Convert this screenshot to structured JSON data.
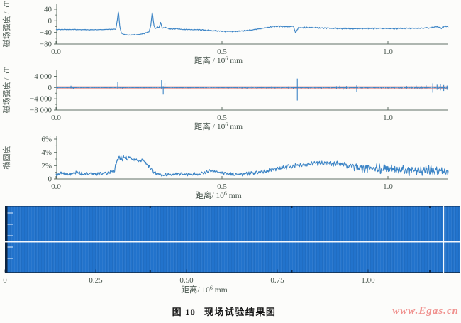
{
  "figure": {
    "caption": {
      "number": "图 10",
      "title": "现场试验结果图"
    },
    "watermark": "www.Egas.cn"
  },
  "colors": {
    "trace": "#3d85c6",
    "band": "#2273cc",
    "band_dark_edge": "#0d2440",
    "band_bottom_line": "#122b47",
    "threshold": "#e09090",
    "axis": "#5f6f65",
    "text": "#49564e",
    "white_line": "#ffffff"
  },
  "chart_data": [
    {
      "id": "magnetic-field-profile",
      "type": "line",
      "ylabel": "磁场强度 / nT",
      "xlabel": {
        "pre": "距离 / 10",
        "exp": "6",
        "suf": " mm"
      },
      "xlim": [
        0,
        1.182
      ],
      "ylim": [
        -80,
        57
      ],
      "yticks": [
        {
          "v": 40,
          "l": "40"
        },
        {
          "v": 0,
          "l": "0"
        },
        {
          "v": -40,
          "l": "−40"
        },
        {
          "v": -80,
          "l": "−80"
        }
      ],
      "yminor": [
        20,
        -20,
        -60
      ],
      "xticks": [
        {
          "v": 0,
          "l": "0.0"
        },
        {
          "v": 0.5,
          "l": "0.5"
        },
        {
          "v": 1.0,
          "l": "1.0"
        }
      ],
      "keypoints": [
        [
          0,
          -30
        ],
        [
          0.05,
          -30
        ],
        [
          0.1,
          -31
        ],
        [
          0.15,
          -30
        ],
        [
          0.18,
          -29
        ],
        [
          0.185,
          5
        ],
        [
          0.188,
          35
        ],
        [
          0.192,
          -20
        ],
        [
          0.197,
          -42
        ],
        [
          0.205,
          -47
        ],
        [
          0.22,
          -49
        ],
        [
          0.245,
          -48
        ],
        [
          0.265,
          -44
        ],
        [
          0.28,
          -38
        ],
        [
          0.285,
          -20
        ],
        [
          0.29,
          30
        ],
        [
          0.295,
          -15
        ],
        [
          0.3,
          -28
        ],
        [
          0.305,
          -20
        ],
        [
          0.31,
          -26
        ],
        [
          0.315,
          -6
        ],
        [
          0.32,
          -25
        ],
        [
          0.33,
          -23
        ],
        [
          0.34,
          -28
        ],
        [
          0.36,
          -27
        ],
        [
          0.38,
          -29
        ],
        [
          0.4,
          -30
        ],
        [
          0.43,
          -31
        ],
        [
          0.46,
          -33
        ],
        [
          0.49,
          -35
        ],
        [
          0.52,
          -37
        ],
        [
          0.55,
          -36
        ],
        [
          0.58,
          -33
        ],
        [
          0.6,
          -30
        ],
        [
          0.63,
          -24
        ],
        [
          0.65,
          -20
        ],
        [
          0.67,
          -19
        ],
        [
          0.7,
          -20
        ],
        [
          0.715,
          -19
        ],
        [
          0.722,
          -42
        ],
        [
          0.73,
          -24
        ],
        [
          0.76,
          -23
        ],
        [
          0.8,
          -25
        ],
        [
          0.85,
          -26
        ],
        [
          0.9,
          -27
        ],
        [
          0.95,
          -26
        ],
        [
          1.0,
          -27
        ],
        [
          1.05,
          -26
        ],
        [
          1.1,
          -25
        ],
        [
          1.13,
          -24
        ],
        [
          1.15,
          -20
        ],
        [
          1.16,
          -26
        ],
        [
          1.17,
          -18
        ],
        [
          1.18,
          -22
        ]
      ],
      "noise_env": [
        [
          0,
          1.2
        ],
        [
          0.18,
          1.2
        ],
        [
          0.34,
          2.0
        ],
        [
          0.6,
          2.2
        ],
        [
          1.18,
          2.5
        ]
      ]
    },
    {
      "id": "magnetic-field-gradient",
      "type": "line",
      "ylabel": "磁场强度 / nT",
      "xlabel": {
        "pre": "距离 / 10",
        "exp": "6",
        "suf": " mm"
      },
      "xlim": [
        0,
        1.182
      ],
      "ylim": [
        -8000,
        6150
      ],
      "yticks": [
        {
          "v": 4000,
          "l": "4 000"
        },
        {
          "v": 0,
          "l": "0"
        },
        {
          "v": -4000,
          "l": "−4 000"
        },
        {
          "v": -8000,
          "l": "−8 000"
        }
      ],
      "yminor": [
        2000,
        -2000,
        -6000
      ],
      "xticks": [
        {
          "v": 0,
          "l": "0.0"
        },
        {
          "v": 0.5,
          "l": "0.5"
        },
        {
          "v": 1.0,
          "l": "1.0"
        }
      ],
      "threshold_lines": {
        "values": [
          330,
          -330
        ]
      },
      "keypoints": [
        [
          0,
          0
        ],
        [
          1.182,
          0
        ]
      ],
      "noise_env": [
        [
          0,
          50
        ],
        [
          0.3,
          60
        ],
        [
          0.5,
          80
        ],
        [
          0.7,
          90
        ],
        [
          0.85,
          120
        ],
        [
          0.95,
          140
        ],
        [
          1.05,
          200
        ],
        [
          1.18,
          260
        ]
      ],
      "impulses": [
        {
          "x": 0.004,
          "u": 260,
          "d": -260
        },
        {
          "x": 0.045,
          "u": 650,
          "d": -250
        },
        {
          "x": 0.052,
          "u": 180,
          "d": -420
        },
        {
          "x": 0.062,
          "u": 300,
          "d": -180
        },
        {
          "x": 0.13,
          "u": 200,
          "d": -120
        },
        {
          "x": 0.186,
          "u": 1900,
          "d": -350
        },
        {
          "x": 0.2,
          "u": 150,
          "d": -300
        },
        {
          "x": 0.318,
          "u": 2600,
          "d": -400
        },
        {
          "x": 0.323,
          "u": 500,
          "d": -2500
        },
        {
          "x": 0.328,
          "u": 1600,
          "d": -300
        },
        {
          "x": 0.37,
          "u": 220,
          "d": -180
        },
        {
          "x": 0.4,
          "u": 180,
          "d": -220
        },
        {
          "x": 0.425,
          "u": 250,
          "d": -150
        },
        {
          "x": 0.445,
          "u": 200,
          "d": -250
        },
        {
          "x": 0.46,
          "u": 160,
          "d": -200
        },
        {
          "x": 0.49,
          "u": 240,
          "d": -180
        },
        {
          "x": 0.52,
          "u": 180,
          "d": -240
        },
        {
          "x": 0.545,
          "u": 300,
          "d": -200
        },
        {
          "x": 0.56,
          "u": 350,
          "d": -300
        },
        {
          "x": 0.575,
          "u": 280,
          "d": -380
        },
        {
          "x": 0.59,
          "u": 420,
          "d": -260
        },
        {
          "x": 0.605,
          "u": 250,
          "d": -350
        },
        {
          "x": 0.62,
          "u": 380,
          "d": -280
        },
        {
          "x": 0.635,
          "u": 300,
          "d": -420
        },
        {
          "x": 0.65,
          "u": 500,
          "d": -450
        },
        {
          "x": 0.66,
          "u": 350,
          "d": -300
        },
        {
          "x": 0.68,
          "u": 280,
          "d": -600
        },
        {
          "x": 0.7,
          "u": 400,
          "d": -300
        },
        {
          "x": 0.715,
          "u": 350,
          "d": -400
        },
        {
          "x": 0.727,
          "u": 3200,
          "d": -4600
        },
        {
          "x": 0.74,
          "u": 300,
          "d": -250
        },
        {
          "x": 0.76,
          "u": 250,
          "d": -300
        },
        {
          "x": 0.78,
          "u": 350,
          "d": -280
        },
        {
          "x": 0.8,
          "u": 280,
          "d": -350
        },
        {
          "x": 0.82,
          "u": 300,
          "d": -250
        },
        {
          "x": 0.845,
          "u": 500,
          "d": -400
        },
        {
          "x": 0.855,
          "u": 650,
          "d": -350
        },
        {
          "x": 0.865,
          "u": 400,
          "d": -800
        },
        {
          "x": 0.875,
          "u": 550,
          "d": -450
        },
        {
          "x": 0.885,
          "u": 350,
          "d": -500
        },
        {
          "x": 0.906,
          "u": 800,
          "d": -1600
        },
        {
          "x": 0.92,
          "u": 300,
          "d": -250
        },
        {
          "x": 0.94,
          "u": 250,
          "d": -300
        },
        {
          "x": 0.96,
          "u": 300,
          "d": -200
        },
        {
          "x": 0.98,
          "u": 250,
          "d": -300
        },
        {
          "x": 1.0,
          "u": 300,
          "d": -250
        },
        {
          "x": 1.02,
          "u": 350,
          "d": -300
        },
        {
          "x": 1.04,
          "u": 400,
          "d": -350
        },
        {
          "x": 1.056,
          "u": 600,
          "d": -500
        },
        {
          "x": 1.07,
          "u": 500,
          "d": -650
        },
        {
          "x": 1.085,
          "u": 700,
          "d": -550
        },
        {
          "x": 1.1,
          "u": 600,
          "d": -700
        },
        {
          "x": 1.115,
          "u": 800,
          "d": -650
        },
        {
          "x": 1.135,
          "u": 1500,
          "d": -1800
        },
        {
          "x": 1.148,
          "u": 1000,
          "d": -800
        },
        {
          "x": 1.158,
          "u": 1300,
          "d": -1000
        },
        {
          "x": 1.168,
          "u": 900,
          "d": -1200
        },
        {
          "x": 1.178,
          "u": 700,
          "d": -800
        }
      ]
    },
    {
      "id": "ellipticity",
      "type": "line",
      "ylabel": "椭圆度",
      "xlabel": {
        "pre": "距离/ 10",
        "exp": "6",
        "suf": " mm"
      },
      "xlim": [
        0,
        1.182
      ],
      "ylim": [
        0,
        6.43
      ],
      "yticks": [
        {
          "v": 6,
          "l": "6%"
        },
        {
          "v": 4,
          "l": "4%"
        },
        {
          "v": 2,
          "l": "2%"
        },
        {
          "v": 0,
          "l": "0"
        }
      ],
      "yminor": [
        5,
        3,
        1
      ],
      "xticks": [
        {
          "v": 0,
          "l": "0.0"
        },
        {
          "v": 0.5,
          "l": "0.5"
        },
        {
          "v": 1.0,
          "l": "1.0"
        }
      ],
      "keypoints": [
        [
          0,
          0.6
        ],
        [
          0.02,
          0.9
        ],
        [
          0.04,
          0.7
        ],
        [
          0.06,
          1.0
        ],
        [
          0.08,
          0.75
        ],
        [
          0.1,
          0.9
        ],
        [
          0.12,
          0.7
        ],
        [
          0.14,
          0.85
        ],
        [
          0.16,
          0.9
        ],
        [
          0.175,
          1.2
        ],
        [
          0.185,
          2.8
        ],
        [
          0.19,
          3.3
        ],
        [
          0.2,
          2.9
        ],
        [
          0.205,
          3.5
        ],
        [
          0.215,
          3.0
        ],
        [
          0.225,
          3.3
        ],
        [
          0.23,
          2.9
        ],
        [
          0.24,
          2.85
        ],
        [
          0.25,
          2.8
        ],
        [
          0.26,
          2.8
        ],
        [
          0.265,
          2.75
        ],
        [
          0.27,
          2.4
        ],
        [
          0.28,
          2.0
        ],
        [
          0.285,
          1.6
        ],
        [
          0.295,
          1.1
        ],
        [
          0.305,
          0.8
        ],
        [
          0.315,
          0.6
        ],
        [
          0.33,
          0.7
        ],
        [
          0.35,
          0.6
        ],
        [
          0.37,
          0.75
        ],
        [
          0.39,
          0.7
        ],
        [
          0.41,
          0.8
        ],
        [
          0.43,
          0.75
        ],
        [
          0.45,
          1.0
        ],
        [
          0.465,
          1.3
        ],
        [
          0.48,
          1.1
        ],
        [
          0.5,
          0.9
        ],
        [
          0.52,
          0.75
        ],
        [
          0.54,
          0.65
        ],
        [
          0.56,
          0.7
        ],
        [
          0.58,
          0.8
        ],
        [
          0.6,
          0.9
        ],
        [
          0.62,
          1.1
        ],
        [
          0.64,
          1.3
        ],
        [
          0.66,
          1.5
        ],
        [
          0.68,
          1.7
        ],
        [
          0.7,
          1.9
        ],
        [
          0.72,
          2.0
        ],
        [
          0.74,
          2.1
        ],
        [
          0.76,
          2.2
        ],
        [
          0.78,
          2.4
        ],
        [
          0.8,
          2.3
        ],
        [
          0.82,
          2.4
        ],
        [
          0.84,
          2.2
        ],
        [
          0.86,
          2.3
        ],
        [
          0.88,
          2.0
        ],
        [
          0.9,
          1.8
        ],
        [
          0.92,
          1.7
        ],
        [
          0.94,
          1.6
        ],
        [
          0.96,
          1.7
        ],
        [
          0.98,
          1.5
        ],
        [
          1.0,
          1.6
        ],
        [
          1.02,
          1.4
        ],
        [
          1.04,
          1.5
        ],
        [
          1.06,
          1.3
        ],
        [
          1.08,
          1.4
        ],
        [
          1.1,
          1.3
        ],
        [
          1.12,
          1.4
        ],
        [
          1.14,
          1.1
        ],
        [
          1.16,
          1.2
        ],
        [
          1.18,
          1.0
        ]
      ],
      "noise_env": [
        [
          0,
          0.3
        ],
        [
          0.17,
          0.3
        ],
        [
          0.19,
          0.5
        ],
        [
          0.23,
          0.2
        ],
        [
          0.27,
          0.35
        ],
        [
          0.32,
          0.25
        ],
        [
          0.5,
          0.3
        ],
        [
          0.65,
          0.35
        ],
        [
          0.8,
          0.4
        ],
        [
          0.88,
          0.6
        ],
        [
          0.95,
          0.85
        ],
        [
          1.05,
          0.9
        ],
        [
          1.12,
          0.8
        ],
        [
          1.18,
          0.6
        ]
      ]
    },
    {
      "id": "bscan-band",
      "type": "heatmap",
      "xlabel": {
        "pre": "距离/ 10",
        "exp": "6",
        "suf": " mm"
      },
      "xlim": [
        0,
        1.252
      ],
      "xticks": [
        {
          "v": 0,
          "l": "0"
        },
        {
          "v": 0.25,
          "l": "0.25"
        },
        {
          "v": 0.5,
          "l": "0.50"
        },
        {
          "v": 0.75,
          "l": "0.75"
        },
        {
          "v": 1.0,
          "l": "1.00"
        }
      ],
      "h_line_frac": 0.526,
      "v_line_x": 1.207,
      "edge_marks": [
        0.4,
        0.79,
        1.17
      ],
      "inner_tick_count": 5
    }
  ]
}
